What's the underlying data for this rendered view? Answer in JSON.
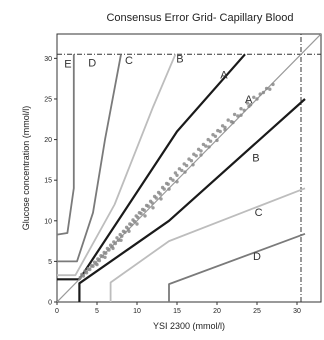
{
  "chart_data": {
    "type": "scatter",
    "title": "Consensus Error Grid- Capillary Blood",
    "xlabel": "YSI 2300 (mmol/l)",
    "ylabel": "Glucose concentration (mmol/l)",
    "xlim": [
      0,
      33
    ],
    "ylim": [
      0,
      33
    ],
    "xticks": [
      0,
      5,
      10,
      15,
      20,
      25,
      30
    ],
    "yticks": [
      0,
      5,
      10,
      15,
      20,
      25,
      30
    ],
    "reference_lines": {
      "x": 30.5,
      "y": 30.5,
      "style": "dash-dot"
    },
    "zone_boundaries": [
      {
        "zone": "A-upper",
        "color": "#1a1a1a",
        "points": [
          [
            0,
            2.8
          ],
          [
            2.8,
            2.8
          ],
          [
            15,
            21
          ],
          [
            23.5,
            30.5
          ]
        ]
      },
      {
        "zone": "A-lower",
        "color": "#1a1a1a",
        "points": [
          [
            2.8,
            0
          ],
          [
            2.8,
            2.3
          ],
          [
            14,
            10
          ],
          [
            31,
            25
          ]
        ]
      },
      {
        "zone": "B-upper",
        "color": "#bdbdbd",
        "points": [
          [
            0,
            3.3
          ],
          [
            2.3,
            3.3
          ],
          [
            7.2,
            12
          ],
          [
            12,
            24
          ],
          [
            14.8,
            30.5
          ]
        ]
      },
      {
        "zone": "B-lower",
        "color": "#bdbdbd",
        "points": [
          [
            6.7,
            0
          ],
          [
            6.7,
            2.4
          ],
          [
            14,
            7.5
          ],
          [
            31,
            14
          ]
        ]
      },
      {
        "zone": "C-upper",
        "color": "#7a7a7a",
        "points": [
          [
            0,
            5
          ],
          [
            2.5,
            5
          ],
          [
            4.5,
            11
          ],
          [
            6,
            20
          ],
          [
            8,
            30.5
          ]
        ]
      },
      {
        "zone": "C-lower",
        "color": "#7a7a7a",
        "points": [
          [
            14,
            0
          ],
          [
            14,
            2.2
          ],
          [
            31,
            8.4
          ]
        ]
      },
      {
        "zone": "D-upper",
        "color": "#7a7a7a",
        "points": [
          [
            0,
            8.3
          ],
          [
            1.3,
            8.5
          ],
          [
            2.1,
            14
          ],
          [
            2.1,
            30.5
          ]
        ]
      },
      {
        "zone": "identity",
        "color": "#9a9a9a",
        "points": [
          [
            0,
            0
          ],
          [
            33,
            33
          ]
        ]
      }
    ],
    "zone_labels": [
      {
        "text": "E",
        "x": 0.9,
        "y": 28.9
      },
      {
        "text": "D",
        "x": 3.9,
        "y": 29
      },
      {
        "text": "C",
        "x": 8.5,
        "y": 29.3
      },
      {
        "text": "B",
        "x": 14.9,
        "y": 29.5
      },
      {
        "text": "A",
        "x": 20.4,
        "y": 27.5
      },
      {
        "text": "A",
        "x": 23.5,
        "y": 24.5
      },
      {
        "text": "B",
        "x": 24.4,
        "y": 17.3
      },
      {
        "text": "C",
        "x": 24.7,
        "y": 10.6
      },
      {
        "text": "D",
        "x": 24.5,
        "y": 5.2
      }
    ],
    "series": [
      {
        "color": "#8a8a8a",
        "points": [
          [
            2.9,
            3.0
          ],
          [
            3.1,
            3.4
          ],
          [
            3.3,
            3.2
          ],
          [
            3.5,
            3.8
          ],
          [
            3.7,
            3.6
          ],
          [
            3.9,
            4.1
          ],
          [
            4.1,
            4.0
          ],
          [
            4.3,
            4.5
          ],
          [
            4.5,
            4.4
          ],
          [
            4.7,
            4.9
          ],
          [
            4.9,
            4.7
          ],
          [
            5.1,
            5.3
          ],
          [
            5.3,
            5.1
          ],
          [
            5.5,
            5.7
          ],
          [
            5.7,
            5.6
          ],
          [
            5.9,
            6.1
          ],
          [
            6.1,
            6.0
          ],
          [
            6.3,
            6.6
          ],
          [
            6.5,
            6.4
          ],
          [
            6.7,
            7.0
          ],
          [
            6.9,
            6.8
          ],
          [
            7.1,
            7.4
          ],
          [
            7.3,
            7.2
          ],
          [
            7.5,
            7.9
          ],
          [
            7.7,
            7.6
          ],
          [
            7.9,
            8.3
          ],
          [
            8.1,
            8.1
          ],
          [
            8.3,
            8.7
          ],
          [
            8.5,
            8.6
          ],
          [
            8.7,
            9.2
          ],
          [
            8.9,
            9.0
          ],
          [
            9.1,
            9.6
          ],
          [
            9.3,
            9.5
          ],
          [
            9.5,
            10.1
          ],
          [
            9.7,
            9.9
          ],
          [
            9.9,
            10.6
          ],
          [
            10.1,
            10.4
          ],
          [
            10.3,
            11.0
          ],
          [
            10.5,
            10.9
          ],
          [
            10.7,
            11.4
          ],
          [
            10.9,
            11.3
          ],
          [
            11.2,
            11.9
          ],
          [
            11.4,
            11.8
          ],
          [
            11.7,
            12.4
          ],
          [
            11.9,
            12.2
          ],
          [
            12.2,
            13.0
          ],
          [
            12.4,
            12.8
          ],
          [
            12.7,
            13.5
          ],
          [
            12.9,
            13.3
          ],
          [
            13.2,
            14.1
          ],
          [
            13.4,
            13.9
          ],
          [
            13.7,
            14.6
          ],
          [
            13.9,
            14.5
          ],
          [
            14.2,
            15.2
          ],
          [
            14.5,
            15.0
          ],
          [
            14.8,
            15.9
          ],
          [
            15.0,
            15.6
          ],
          [
            15.3,
            16.4
          ],
          [
            15.6,
            16.2
          ],
          [
            15.9,
            17.0
          ],
          [
            16.2,
            16.8
          ],
          [
            16.5,
            17.6
          ],
          [
            16.8,
            17.4
          ],
          [
            17.1,
            18.2
          ],
          [
            17.4,
            18.0
          ],
          [
            17.7,
            18.8
          ],
          [
            18.0,
            18.6
          ],
          [
            18.3,
            19.4
          ],
          [
            18.6,
            19.2
          ],
          [
            18.9,
            20.0
          ],
          [
            19.2,
            19.8
          ],
          [
            19.5,
            20.6
          ],
          [
            19.8,
            20.4
          ],
          [
            20.1,
            21.1
          ],
          [
            20.4,
            21.0
          ],
          [
            20.7,
            21.7
          ],
          [
            21.0,
            21.5
          ],
          [
            21.4,
            22.4
          ],
          [
            21.8,
            22.2
          ],
          [
            22.2,
            23.1
          ],
          [
            22.6,
            22.9
          ],
          [
            23.0,
            23.8
          ],
          [
            23.4,
            23.6
          ],
          [
            23.8,
            24.5
          ],
          [
            24.2,
            24.3
          ],
          [
            24.6,
            25.2
          ],
          [
            25.0,
            25.0
          ],
          [
            25.4,
            25.6
          ],
          [
            25.8,
            25.8
          ],
          [
            26.2,
            26.3
          ],
          [
            26.6,
            26.2
          ],
          [
            27.0,
            26.8
          ],
          [
            5.0,
            4.6
          ],
          [
            6.0,
            5.5
          ],
          [
            7.0,
            6.6
          ],
          [
            8.0,
            7.6
          ],
          [
            9.0,
            8.7
          ],
          [
            10.0,
            9.6
          ],
          [
            11.0,
            10.6
          ],
          [
            12.0,
            11.6
          ],
          [
            13.0,
            12.7
          ],
          [
            14.0,
            13.9
          ],
          [
            15.0,
            14.8
          ],
          [
            16.0,
            16.0
          ],
          [
            17.0,
            16.9
          ],
          [
            18.0,
            18.1
          ],
          [
            19.0,
            19.1
          ],
          [
            20.0,
            19.9
          ],
          [
            21.0,
            21.2
          ],
          [
            22.0,
            22.1
          ],
          [
            23.0,
            23.0
          ],
          [
            24.0,
            24.1
          ]
        ]
      }
    ]
  }
}
